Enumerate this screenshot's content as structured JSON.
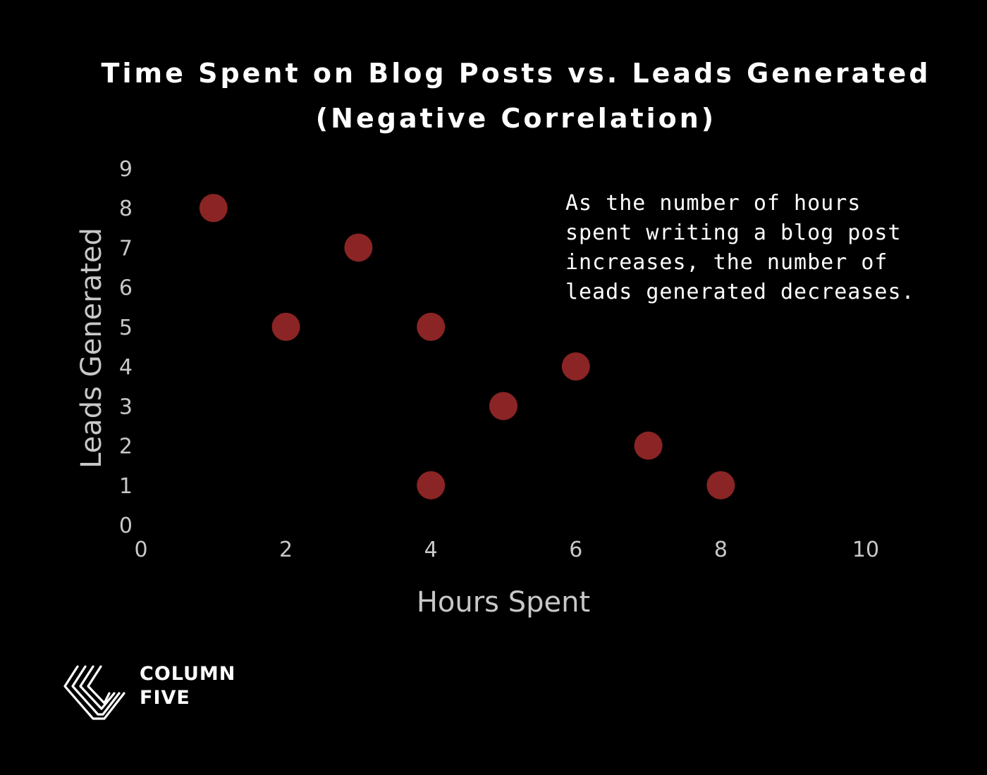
{
  "chart_data": {
    "type": "scatter",
    "title_lines": [
      "Time Spent on Blog Posts vs. Leads Generated",
      "(Negative Correlation)"
    ],
    "xlabel": "Hours Spent",
    "ylabel": "Leads Generated",
    "xlim": [
      0,
      10
    ],
    "ylim": [
      0,
      9
    ],
    "x_ticks": [
      0,
      2,
      4,
      6,
      8,
      10
    ],
    "y_ticks": [
      0,
      1,
      2,
      3,
      4,
      5,
      6,
      7,
      8,
      9
    ],
    "grid": false,
    "legend": "none",
    "point_color": "#8b2424",
    "points": [
      {
        "x": 1,
        "y": 8
      },
      {
        "x": 2,
        "y": 5
      },
      {
        "x": 3,
        "y": 7
      },
      {
        "x": 4,
        "y": 5
      },
      {
        "x": 4,
        "y": 1
      },
      {
        "x": 5,
        "y": 3
      },
      {
        "x": 6,
        "y": 4
      },
      {
        "x": 7,
        "y": 2
      },
      {
        "x": 8,
        "y": 1
      }
    ],
    "annotation_lines": [
      "As the number of hours",
      "spent writing a blog post",
      "increases, the number of",
      "leads generated decreases."
    ]
  },
  "brand": {
    "logo_icon": "column-five-logo-icon",
    "name_lines": [
      "COLUMN",
      "FIVE"
    ],
    "color": "#ffffff"
  }
}
